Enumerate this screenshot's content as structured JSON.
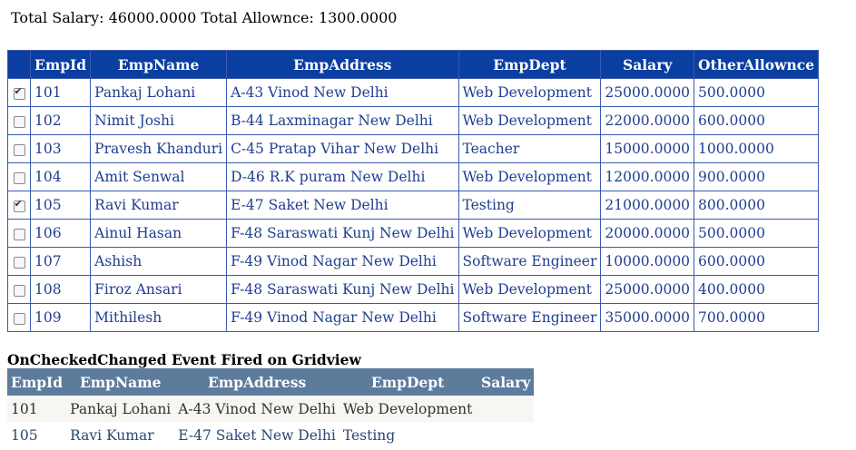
{
  "totals": {
    "salary_label": "Total Salary:",
    "salary_value": "46000.0000",
    "allowance_label": "Total Allownce:",
    "allowance_value": "1300.0000"
  },
  "grid": {
    "headers": [
      "EmpId",
      "EmpName",
      "EmpAddress",
      "EmpDept",
      "Salary",
      "OtherAllownce"
    ],
    "rows": [
      {
        "checked": true,
        "id": "101",
        "name": "Pankaj Lohani",
        "address": "A-43 Vinod New Delhi",
        "dept": "Web Development",
        "salary": "25000.0000",
        "allowance": "500.0000"
      },
      {
        "checked": false,
        "id": "102",
        "name": "Nimit Joshi",
        "address": "B-44 Laxminagar New Delhi",
        "dept": "Web Development",
        "salary": "22000.0000",
        "allowance": "600.0000"
      },
      {
        "checked": false,
        "id": "103",
        "name": "Pravesh Khanduri",
        "address": "C-45 Pratap Vihar New Delhi",
        "dept": "Teacher",
        "salary": "15000.0000",
        "allowance": "1000.0000"
      },
      {
        "checked": false,
        "id": "104",
        "name": "Amit Senwal",
        "address": "D-46 R.K puram New Delhi",
        "dept": "Web Development",
        "salary": "12000.0000",
        "allowance": "900.0000"
      },
      {
        "checked": true,
        "id": "105",
        "name": "Ravi Kumar",
        "address": "E-47 Saket New Delhi",
        "dept": "Testing",
        "salary": "21000.0000",
        "allowance": "800.0000"
      },
      {
        "checked": false,
        "id": "106",
        "name": "Ainul Hasan",
        "address": "F-48 Saraswati Kunj New Delhi",
        "dept": "Web Development",
        "salary": "20000.0000",
        "allowance": "500.0000"
      },
      {
        "checked": false,
        "id": "107",
        "name": "Ashish",
        "address": "F-49 Vinod Nagar New Delhi",
        "dept": "Software Engineer",
        "salary": "10000.0000",
        "allowance": "600.0000"
      },
      {
        "checked": false,
        "id": "108",
        "name": "Firoz Ansari",
        "address": "F-48 Saraswati Kunj New Delhi",
        "dept": "Web Development",
        "salary": "25000.0000",
        "allowance": "400.0000"
      },
      {
        "checked": false,
        "id": "109",
        "name": "Mithilesh",
        "address": "F-49 Vinod Nagar New Delhi",
        "dept": "Software Engineer",
        "salary": "35000.0000",
        "allowance": "700.0000"
      }
    ]
  },
  "selected": {
    "title": "OnCheckedChanged Event Fired on Gridview",
    "headers": [
      "EmpId",
      "EmpName",
      "EmpAddress",
      "EmpDept",
      "Salary"
    ],
    "rows": [
      {
        "id": "101",
        "name": "Pankaj Lohani",
        "address": "A-43 Vinod New Delhi",
        "dept": "Web Development"
      },
      {
        "id": "105",
        "name": "Ravi Kumar",
        "address": "E-47 Saket New Delhi",
        "dept": "Testing"
      }
    ]
  }
}
